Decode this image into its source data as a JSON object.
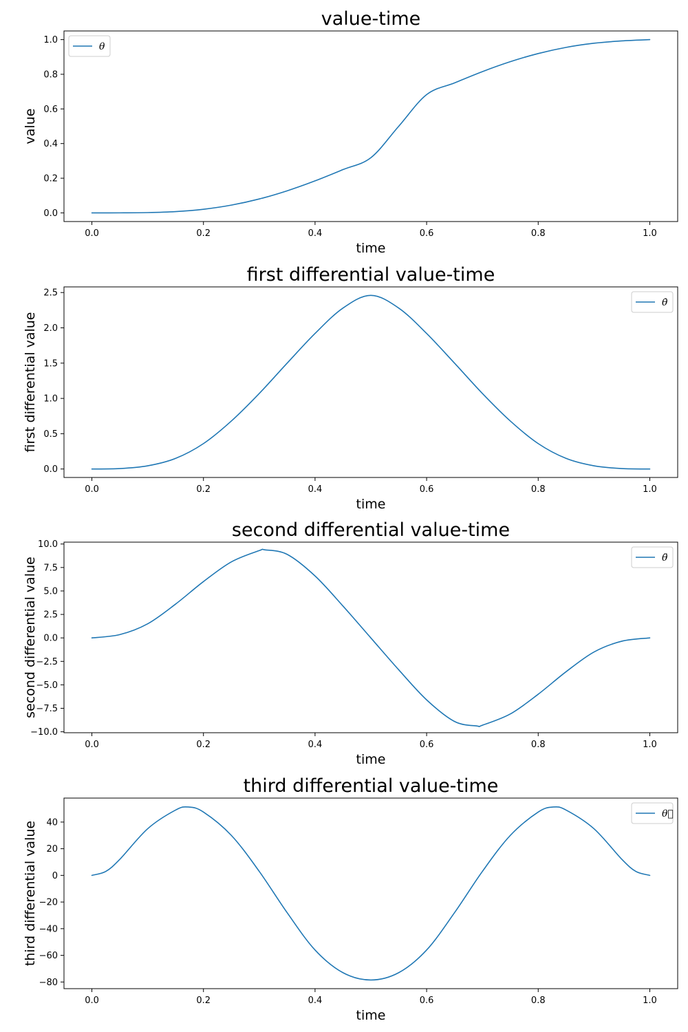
{
  "chart_data": [
    {
      "type": "line",
      "title": "value-time",
      "xlabel": "time",
      "ylabel": "value",
      "xlim": [
        -0.05,
        1.05
      ],
      "ylim": [
        -0.05,
        1.05
      ],
      "xticks": [
        0.0,
        0.2,
        0.4,
        0.6,
        0.8,
        1.0
      ],
      "xtick_labels": [
        "0.0",
        "0.2",
        "0.4",
        "0.6",
        "0.8",
        "1.0"
      ],
      "yticks": [
        0.0,
        0.2,
        0.4,
        0.6,
        0.8,
        1.0
      ],
      "ytick_labels": [
        "0.0",
        "0.2",
        "0.4",
        "0.6",
        "0.8",
        "1.0"
      ],
      "grid": false,
      "legend": {
        "placement": "top-left"
      },
      "color": "#1f77b4",
      "series": [
        {
          "name": "θ",
          "x": [
            0.0,
            0.05,
            0.1,
            0.15,
            0.2,
            0.25,
            0.3,
            0.35,
            0.4,
            0.45,
            0.5,
            0.55,
            0.6,
            0.65,
            0.7,
            0.75,
            0.8,
            0.85,
            0.9,
            0.95,
            1.0
          ],
          "y": [
            0.0,
            0.0001,
            0.0016,
            0.0073,
            0.0208,
            0.0447,
            0.0802,
            0.1274,
            0.1846,
            0.2498,
            0.3184,
            0.5,
            0.6826,
            0.7502,
            0.8154,
            0.8726,
            0.9198,
            0.9553,
            0.9792,
            0.9927,
            1.0
          ]
        }
      ]
    },
    {
      "type": "line",
      "title": "first differential value-time",
      "xlabel": "time",
      "ylabel": "first differential value",
      "xlim": [
        -0.05,
        1.05
      ],
      "ylim": [
        -0.12,
        2.58
      ],
      "xticks": [
        0.0,
        0.2,
        0.4,
        0.6,
        0.8,
        1.0
      ],
      "xtick_labels": [
        "0.0",
        "0.2",
        "0.4",
        "0.6",
        "0.8",
        "1.0"
      ],
      "yticks": [
        0.0,
        0.5,
        1.0,
        1.5,
        2.0,
        2.5
      ],
      "ytick_labels": [
        "0.0",
        "0.5",
        "1.0",
        "1.5",
        "2.0",
        "2.5"
      ],
      "grid": false,
      "legend": {
        "placement": "top-right"
      },
      "color": "#1f77b4",
      "series": [
        {
          "name": "θ̇",
          "x": [
            0.0,
            0.05,
            0.1,
            0.15,
            0.2,
            0.25,
            0.3,
            0.35,
            0.4,
            0.45,
            0.5,
            0.55,
            0.6,
            0.65,
            0.7,
            0.75,
            0.8,
            0.85,
            0.9,
            0.95,
            1.0
          ],
          "y": [
            0.0,
            0.006,
            0.045,
            0.15,
            0.36,
            0.68,
            1.07,
            1.5,
            1.92,
            2.28,
            2.46,
            2.28,
            1.92,
            1.5,
            1.07,
            0.68,
            0.36,
            0.15,
            0.045,
            0.006,
            0.0
          ]
        }
      ]
    },
    {
      "type": "line",
      "title": "second differential value-time",
      "xlabel": "time",
      "ylabel": "second differential value",
      "xlim": [
        -0.05,
        1.05
      ],
      "ylim": [
        -10.1,
        10.2
      ],
      "xticks": [
        0.0,
        0.2,
        0.4,
        0.6,
        0.8,
        1.0
      ],
      "xtick_labels": [
        "0.0",
        "0.2",
        "0.4",
        "0.6",
        "0.8",
        "1.0"
      ],
      "yticks": [
        -10.0,
        -7.5,
        -5.0,
        -2.5,
        0.0,
        2.5,
        5.0,
        7.5,
        10.0
      ],
      "ytick_labels": [
        "−10.0",
        "−7.5",
        "−5.0",
        "−2.5",
        "0.0",
        "2.5",
        "5.0",
        "7.5",
        "10.0"
      ],
      "grid": false,
      "legend": {
        "placement": "top-right"
      },
      "color": "#1f77b4",
      "series": [
        {
          "name": "θ̈",
          "x": [
            0.0,
            0.05,
            0.1,
            0.15,
            0.2,
            0.25,
            0.3,
            0.31,
            0.35,
            0.4,
            0.45,
            0.5,
            0.55,
            0.6,
            0.65,
            0.69,
            0.7,
            0.75,
            0.8,
            0.85,
            0.9,
            0.95,
            1.0
          ],
          "y": [
            0.0,
            0.35,
            1.5,
            3.6,
            6.0,
            8.1,
            9.3,
            9.38,
            8.9,
            6.6,
            3.4,
            0.0,
            -3.4,
            -6.6,
            -8.9,
            -9.38,
            -9.3,
            -8.1,
            -6.0,
            -3.6,
            -1.5,
            -0.35,
            0.0
          ]
        }
      ]
    },
    {
      "type": "line",
      "title": "third differential value-time",
      "xlabel": "time",
      "ylabel": "third differential value",
      "xlim": [
        -0.05,
        1.05
      ],
      "ylim": [
        -85,
        58
      ],
      "xticks": [
        0.0,
        0.2,
        0.4,
        0.6,
        0.8,
        1.0
      ],
      "xtick_labels": [
        "0.0",
        "0.2",
        "0.4",
        "0.6",
        "0.8",
        "1.0"
      ],
      "yticks": [
        -80,
        -60,
        -40,
        -20,
        0,
        20,
        40
      ],
      "ytick_labels": [
        "−80",
        "−60",
        "−40",
        "−20",
        "0",
        "20",
        "40"
      ],
      "grid": false,
      "legend": {
        "placement": "top-right"
      },
      "color": "#1f77b4",
      "series": [
        {
          "name": "θ⃛",
          "x": [
            0.0,
            0.025,
            0.05,
            0.1,
            0.15,
            0.173,
            0.2,
            0.25,
            0.3,
            0.35,
            0.4,
            0.45,
            0.5,
            0.55,
            0.6,
            0.65,
            0.7,
            0.75,
            0.8,
            0.827,
            0.85,
            0.9,
            0.95,
            0.975,
            1.0
          ],
          "y": [
            0.0,
            3.0,
            12.0,
            35.0,
            49.0,
            51.3,
            47.5,
            30.0,
            3.0,
            -28.0,
            -56.0,
            -73.0,
            -78.5,
            -73.0,
            -56.0,
            -28.0,
            3.0,
            30.0,
            47.5,
            51.3,
            49.0,
            35.0,
            12.0,
            3.0,
            0.0
          ]
        }
      ]
    }
  ]
}
